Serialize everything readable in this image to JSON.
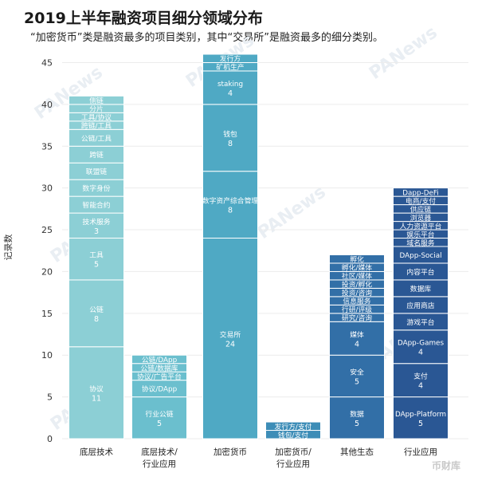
{
  "title": "2019上半年融资项目细分领域分布",
  "subtitle": "“加密货币”类是融资最多的项目类别，其中“交易所”是融资最多的细分类别。",
  "watermark_text": "PANews",
  "footer_logo_text": "币财库",
  "colors": {
    "底层技术": "#8ccfd5",
    "底层技术/行业应用": "#6bbfce",
    "加密货币": "#4fa9c4",
    "加密货币/行业应用": "#3d8db7",
    "其他生态": "#326fa7",
    "行业应用": "#2a5794"
  },
  "chart_data": {
    "type": "bar",
    "stacked": true,
    "title": "2019上半年融资项目细分领域分布",
    "ylabel": "记录数",
    "ylim": [
      0,
      46
    ],
    "yticks": [
      0,
      5,
      10,
      15,
      20,
      25,
      30,
      35,
      40,
      45
    ],
    "grid": true,
    "categories": [
      "底层技术",
      "底层技术/\n行业应用",
      "加密货币",
      "加密货币/\n行业应用",
      "其他生态",
      "行业应用"
    ],
    "bars": [
      {
        "category": "底层技术",
        "segments": [
          {
            "label": "协议",
            "value": 11
          },
          {
            "label": "公链",
            "value": 8
          },
          {
            "label": "工具",
            "value": 5
          },
          {
            "label": "技术服务",
            "value": 3
          },
          {
            "label": "智能合约",
            "value": 2
          },
          {
            "label": "数字身份",
            "value": 2
          },
          {
            "label": "联盟链",
            "value": 2
          },
          {
            "label": "跨链",
            "value": 2
          },
          {
            "label": "公链/工具",
            "value": 2
          },
          {
            "label": "跨链/工具",
            "value": 1
          },
          {
            "label": "工具/协议",
            "value": 1
          },
          {
            "label": "分片",
            "value": 1
          },
          {
            "label": "侧链",
            "value": 1
          }
        ]
      },
      {
        "category": "底层技术/行业应用",
        "segments": [
          {
            "label": "行业公链",
            "value": 5
          },
          {
            "label": "协议/DApp",
            "value": 2
          },
          {
            "label": "协议/广告平台",
            "value": 1
          },
          {
            "label": "公链/数据库",
            "value": 1
          },
          {
            "label": "公链/DApp",
            "value": 1
          }
        ]
      },
      {
        "category": "加密货币",
        "segments": [
          {
            "label": "交易所",
            "value": 24
          },
          {
            "label": "数字资产综合管理",
            "value": 8
          },
          {
            "label": "钱包",
            "value": 8
          },
          {
            "label": "staking",
            "value": 4
          },
          {
            "label": "矿机生产",
            "value": 1
          },
          {
            "label": "发行方",
            "value": 1
          }
        ]
      },
      {
        "category": "加密货币/行业应用",
        "segments": [
          {
            "label": "钱包/支付",
            "value": 1
          },
          {
            "label": "发行方/支付",
            "value": 1
          }
        ]
      },
      {
        "category": "其他生态",
        "segments": [
          {
            "label": "数据",
            "value": 5
          },
          {
            "label": "安全",
            "value": 5
          },
          {
            "label": "媒体",
            "value": 4
          },
          {
            "label": "研究/咨询",
            "value": 1
          },
          {
            "label": "行研/评级",
            "value": 1
          },
          {
            "label": "信息服务",
            "value": 1
          },
          {
            "label": "投资/咨询",
            "value": 1
          },
          {
            "label": "投资/孵化",
            "value": 1
          },
          {
            "label": "社区/媒体",
            "value": 1
          },
          {
            "label": "孵化/媒体",
            "value": 1
          },
          {
            "label": "孵化",
            "value": 1
          }
        ]
      },
      {
        "category": "行业应用",
        "segments": [
          {
            "label": "DApp-Platform",
            "value": 5
          },
          {
            "label": "支付",
            "value": 4
          },
          {
            "label": "DApp-Games",
            "value": 4
          },
          {
            "label": "游戏平台",
            "value": 2
          },
          {
            "label": "应用商店",
            "value": 2
          },
          {
            "label": "数据库",
            "value": 2
          },
          {
            "label": "内容平台",
            "value": 2
          },
          {
            "label": "DApp-Social",
            "value": 2
          },
          {
            "label": "域名服务",
            "value": 1
          },
          {
            "label": "娱乐平台",
            "value": 1
          },
          {
            "label": "人力资源平台",
            "value": 1
          },
          {
            "label": "浏览器",
            "value": 1
          },
          {
            "label": "供应链",
            "value": 1
          },
          {
            "label": "电商/支付",
            "value": 1
          },
          {
            "label": "Dapp-DeFi",
            "value": 1
          }
        ]
      }
    ]
  }
}
